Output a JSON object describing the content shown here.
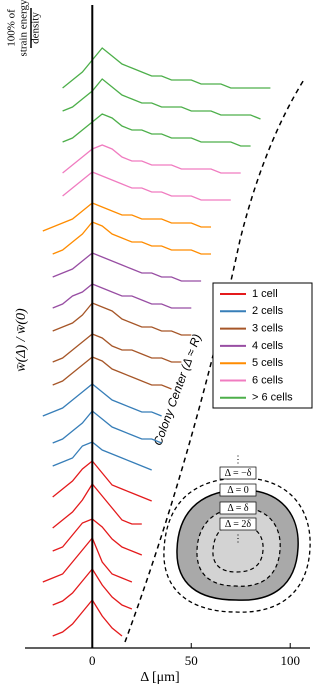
{
  "chart_data": {
    "type": "waterfall",
    "x_label": "Δ [μm]",
    "y_label": "w̄(Δ) / w̄(0)",
    "scale_bar_label": [
      "100% of",
      "strain energy",
      "density"
    ],
    "boundary_label": "Colony Center (Δ ≈ R)",
    "xlim": [
      -34,
      110
    ],
    "xticks": [
      0,
      50,
      100
    ],
    "legend_position": "right",
    "series": [
      {
        "name": "1 cell",
        "color": "#e41a1c",
        "traces": [
          {
            "x": [
              -20,
              -15,
              -10,
              -5,
              0,
              5,
              10,
              15
            ],
            "values": [
              0.1,
              0.2,
              0.4,
              0.7,
              1.0,
              0.6,
              0.3,
              0.1
            ]
          },
          {
            "x": [
              -20,
              -15,
              -10,
              -5,
              0,
              5,
              10,
              15,
              20
            ],
            "values": [
              0.2,
              0.3,
              0.5,
              0.8,
              1.1,
              0.7,
              0.4,
              0.2,
              0.1
            ]
          },
          {
            "x": [
              -25,
              -20,
              -15,
              -10,
              -5,
              0,
              5,
              10,
              15,
              20
            ],
            "values": [
              0.1,
              0.2,
              0.3,
              0.6,
              0.9,
              1.2,
              0.6,
              0.3,
              0.2,
              0.1
            ]
          },
          {
            "x": [
              -20,
              -15,
              -10,
              -5,
              0,
              5,
              10,
              15,
              20,
              25
            ],
            "values": [
              0.2,
              0.3,
              0.6,
              0.9,
              1.0,
              0.8,
              0.5,
              0.3,
              0.2,
              0.1
            ]
          },
          {
            "x": [
              -20,
              -15,
              -10,
              -5,
              0,
              5,
              10,
              15,
              20,
              25
            ],
            "values": [
              0.1,
              0.3,
              0.5,
              0.8,
              1.2,
              0.9,
              0.6,
              0.3,
              0.2,
              0.2
            ]
          },
          {
            "x": [
              -20,
              -15,
              -10,
              -5,
              0,
              5,
              10,
              15,
              20,
              25,
              30
            ],
            "values": [
              0.2,
              0.4,
              0.6,
              0.9,
              1.1,
              0.8,
              0.5,
              0.4,
              0.3,
              0.2,
              0.1
            ]
          }
        ]
      },
      {
        "name": "2 cells",
        "color": "#377eb8",
        "traces": [
          {
            "x": [
              -20,
              -15,
              -10,
              -5,
              0,
              5,
              10,
              15,
              20,
              25,
              30
            ],
            "values": [
              0.3,
              0.4,
              0.5,
              0.8,
              0.9,
              0.7,
              0.6,
              0.5,
              0.4,
              0.3,
              0.2
            ]
          },
          {
            "x": [
              -20,
              -15,
              -10,
              -5,
              0,
              5,
              10,
              15,
              20,
              25,
              30,
              35
            ],
            "values": [
              0.2,
              0.3,
              0.5,
              0.7,
              1.0,
              0.8,
              0.6,
              0.5,
              0.4,
              0.3,
              0.3,
              0.2
            ]
          },
          {
            "x": [
              -25,
              -20,
              -15,
              -10,
              -5,
              0,
              5,
              10,
              15,
              20,
              25,
              30,
              35
            ],
            "values": [
              0.2,
              0.3,
              0.4,
              0.6,
              0.8,
              1.0,
              0.8,
              0.6,
              0.5,
              0.4,
              0.3,
              0.3,
              0.2
            ]
          }
        ]
      },
      {
        "name": "3 cells",
        "color": "#a65628",
        "traces": [
          {
            "x": [
              -20,
              -15,
              -10,
              -5,
              0,
              5,
              10,
              15,
              20,
              25,
              30,
              35,
              40
            ],
            "values": [
              0.3,
              0.4,
              0.6,
              0.8,
              1.0,
              0.9,
              0.7,
              0.6,
              0.5,
              0.4,
              0.3,
              0.3,
              0.2
            ]
          },
          {
            "x": [
              -20,
              -15,
              -10,
              -5,
              0,
              5,
              10,
              15,
              20,
              25,
              30,
              35,
              40,
              45
            ],
            "values": [
              0.2,
              0.3,
              0.5,
              0.7,
              0.9,
              0.8,
              0.6,
              0.5,
              0.5,
              0.4,
              0.3,
              0.3,
              0.2,
              0.2
            ]
          },
          {
            "x": [
              -20,
              -15,
              -10,
              -5,
              0,
              5,
              10,
              15,
              20,
              25,
              30,
              35,
              40,
              45,
              50
            ],
            "values": [
              0.3,
              0.4,
              0.5,
              0.7,
              1.0,
              0.9,
              0.8,
              0.6,
              0.5,
              0.4,
              0.4,
              0.3,
              0.3,
              0.2,
              0.2
            ]
          }
        ]
      },
      {
        "name": "4 cells",
        "color": "#984ea3",
        "traces": [
          {
            "x": [
              -20,
              -15,
              -10,
              -5,
              0,
              5,
              10,
              15,
              20,
              25,
              30,
              35,
              40,
              45,
              50
            ],
            "values": [
              0.2,
              0.3,
              0.5,
              0.6,
              0.8,
              0.7,
              0.6,
              0.5,
              0.5,
              0.4,
              0.3,
              0.3,
              0.2,
              0.2,
              0.2
            ]
          },
          {
            "x": [
              -20,
              -15,
              -10,
              -5,
              0,
              5,
              10,
              15,
              20,
              25,
              30,
              35,
              40,
              45,
              50,
              55
            ],
            "values": [
              0.3,
              0.4,
              0.5,
              0.7,
              0.9,
              0.8,
              0.7,
              0.6,
              0.5,
              0.4,
              0.4,
              0.3,
              0.3,
              0.2,
              0.2,
              0.2
            ]
          }
        ]
      },
      {
        "name": "5 cells",
        "color": "#ff8c00",
        "traces": [
          {
            "x": [
              -20,
              -15,
              -10,
              -5,
              0,
              5,
              10,
              15,
              20,
              25,
              30,
              35,
              40,
              45,
              50,
              55,
              60
            ],
            "values": [
              0.2,
              0.3,
              0.5,
              0.7,
              1.0,
              0.9,
              0.7,
              0.6,
              0.5,
              0.5,
              0.4,
              0.4,
              0.3,
              0.3,
              0.3,
              0.2,
              0.2
            ]
          },
          {
            "x": [
              -25,
              -20,
              -15,
              -10,
              -5,
              0,
              5,
              10,
              15,
              20,
              25,
              30,
              35,
              40,
              45,
              50,
              55,
              60
            ],
            "values": [
              0.1,
              0.2,
              0.3,
              0.4,
              0.6,
              0.8,
              0.7,
              0.6,
              0.5,
              0.5,
              0.4,
              0.4,
              0.4,
              0.3,
              0.3,
              0.3,
              0.2,
              0.2
            ]
          }
        ]
      },
      {
        "name": "6 cells",
        "color": "#f07cc0",
        "traces": [
          {
            "x": [
              -15,
              -10,
              -5,
              0,
              5,
              10,
              15,
              20,
              25,
              30,
              35,
              40,
              45,
              50,
              55,
              60,
              65,
              70
            ],
            "values": [
              0.3,
              0.5,
              0.7,
              0.9,
              0.8,
              0.7,
              0.6,
              0.5,
              0.5,
              0.4,
              0.4,
              0.3,
              0.3,
              0.3,
              0.2,
              0.2,
              0.2,
              0.2
            ]
          },
          {
            "x": [
              -15,
              -10,
              -5,
              0,
              5,
              10,
              15,
              20,
              25,
              30,
              35,
              40,
              45,
              50,
              55,
              60,
              65,
              70,
              75
            ],
            "values": [
              0.2,
              0.4,
              0.6,
              0.8,
              0.9,
              0.8,
              0.6,
              0.5,
              0.5,
              0.4,
              0.4,
              0.4,
              0.3,
              0.3,
              0.3,
              0.3,
              0.2,
              0.2,
              0.2
            ]
          }
        ]
      },
      {
        "name": "> 6 cells",
        "color": "#4daf4a",
        "traces": [
          {
            "x": [
              -15,
              -10,
              -5,
              0,
              5,
              10,
              15,
              20,
              25,
              30,
              35,
              40,
              45,
              50,
              55,
              60,
              65,
              70,
              75,
              80
            ],
            "values": [
              0.3,
              0.4,
              0.6,
              0.8,
              1.0,
              0.9,
              0.7,
              0.6,
              0.6,
              0.5,
              0.5,
              0.4,
              0.4,
              0.4,
              0.3,
              0.3,
              0.3,
              0.3,
              0.2,
              0.2
            ]
          },
          {
            "x": [
              -15,
              -10,
              -5,
              0,
              5,
              10,
              15,
              20,
              25,
              30,
              35,
              40,
              45,
              50,
              55,
              60,
              65,
              70,
              75,
              80,
              85
            ],
            "values": [
              0.4,
              0.5,
              0.7,
              0.9,
              1.2,
              1.0,
              0.8,
              0.7,
              0.6,
              0.6,
              0.5,
              0.5,
              0.5,
              0.4,
              0.4,
              0.4,
              0.3,
              0.3,
              0.3,
              0.3,
              0.2
            ]
          },
          {
            "x": [
              -15,
              -10,
              -5,
              0,
              5,
              10,
              15,
              20,
              25,
              30,
              35,
              40,
              45,
              50,
              55,
              60,
              65,
              70,
              75,
              80,
              85,
              90
            ],
            "values": [
              0.3,
              0.5,
              0.7,
              1.0,
              1.3,
              1.1,
              0.9,
              0.8,
              0.7,
              0.6,
              0.6,
              0.5,
              0.5,
              0.5,
              0.4,
              0.4,
              0.4,
              0.3,
              0.3,
              0.3,
              0.3,
              0.3
            ]
          }
        ]
      }
    ],
    "inset_labels": [
      "⋮",
      "Δ = −δ",
      "Δ = 0",
      "Δ = δ",
      "Δ = 2δ",
      "⋮"
    ]
  }
}
